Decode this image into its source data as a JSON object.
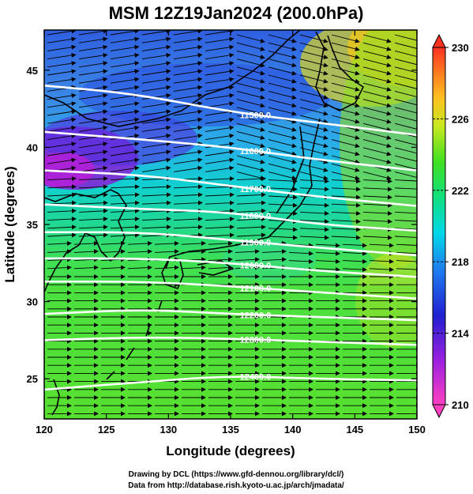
{
  "title": "MSM 12Z19Jan2024 (200.0hPa)",
  "x_axis": {
    "label": "Longitude (degrees)",
    "range": [
      120,
      150
    ],
    "ticks": [
      "120",
      "125",
      "130",
      "135",
      "140",
      "145",
      "150"
    ],
    "tick_values": [
      120,
      125,
      130,
      135,
      140,
      145,
      150
    ]
  },
  "y_axis": {
    "label": "Latitude  (degrees)",
    "range": [
      22.4,
      47.6
    ],
    "ticks": [
      "25",
      "30",
      "35",
      "40",
      "45"
    ],
    "tick_values": [
      25,
      30,
      35,
      40,
      45
    ]
  },
  "colorbar": {
    "range": [
      210,
      230
    ],
    "labels": [
      "230",
      "226",
      "222",
      "218",
      "214",
      "210"
    ],
    "label_values": [
      230,
      226,
      222,
      218,
      214,
      210
    ],
    "colors": [
      "#ff40b0",
      "#8a2be2",
      "#2020e0",
      "#1e90ff",
      "#00d0e0",
      "#20e060",
      "#7ce820",
      "#e8e820",
      "#ffa020",
      "#ff4020"
    ]
  },
  "contours": [
    {
      "label": "11500.0",
      "lat_at_lon": [
        [
          120,
          44.0
        ],
        [
          127,
          43.5
        ],
        [
          135,
          42.3
        ],
        [
          142,
          41.6
        ],
        [
          150,
          40.8
        ]
      ]
    },
    {
      "label": "11600.0",
      "lat_at_lon": [
        [
          120,
          41.0
        ],
        [
          128,
          40.5
        ],
        [
          135,
          40.0
        ],
        [
          142,
          39.2
        ],
        [
          150,
          38.5
        ]
      ]
    },
    {
      "label": "11700.0",
      "lat_at_lon": [
        [
          120,
          38.5
        ],
        [
          128,
          38.2
        ],
        [
          135,
          37.5
        ],
        [
          142,
          36.8
        ],
        [
          150,
          36.2
        ]
      ]
    },
    {
      "label": "11800.0",
      "lat_at_lon": [
        [
          120,
          36.3
        ],
        [
          128,
          36.0
        ],
        [
          135,
          35.8
        ],
        [
          142,
          35.0
        ],
        [
          150,
          34.6
        ]
      ]
    },
    {
      "label": "11900.0",
      "lat_at_lon": [
        [
          120,
          34.5
        ],
        [
          128,
          34.5
        ],
        [
          135,
          34.0
        ],
        [
          142,
          33.5
        ],
        [
          150,
          33.0
        ]
      ]
    },
    {
      "label": "12000.0",
      "lat_at_lon": [
        [
          120,
          32.8
        ],
        [
          128,
          32.8
        ],
        [
          135,
          32.5
        ],
        [
          142,
          32.0
        ],
        [
          150,
          31.6
        ]
      ]
    },
    {
      "label": "12100.0",
      "lat_at_lon": [
        [
          120,
          31.3
        ],
        [
          128,
          31.3
        ],
        [
          135,
          31.0
        ],
        [
          142,
          30.6
        ],
        [
          150,
          30.2
        ]
      ]
    },
    {
      "label": "12200.0",
      "lat_at_lon": [
        [
          120,
          29.2
        ],
        [
          128,
          29.5
        ],
        [
          135,
          29.2
        ],
        [
          142,
          29.0
        ],
        [
          150,
          28.8
        ]
      ]
    },
    {
      "label": "12300.0",
      "lat_at_lon": [
        [
          120,
          27.5
        ],
        [
          128,
          27.7
        ],
        [
          135,
          27.6
        ],
        [
          142,
          27.4
        ],
        [
          150,
          27.2
        ]
      ]
    },
    {
      "label": "12400.0",
      "lat_at_lon": [
        [
          120,
          24.3
        ],
        [
          128,
          24.8
        ],
        [
          135,
          25.2
        ],
        [
          142,
          25.0
        ],
        [
          150,
          24.9
        ]
      ]
    }
  ],
  "credits": {
    "line1": "Drawing by DCL (https://www.gfd-dennou.org/library/dcl/)",
    "line2": "Data from http://database.rish.kyoto-u.ac.jp/arch/jmadata/"
  }
}
